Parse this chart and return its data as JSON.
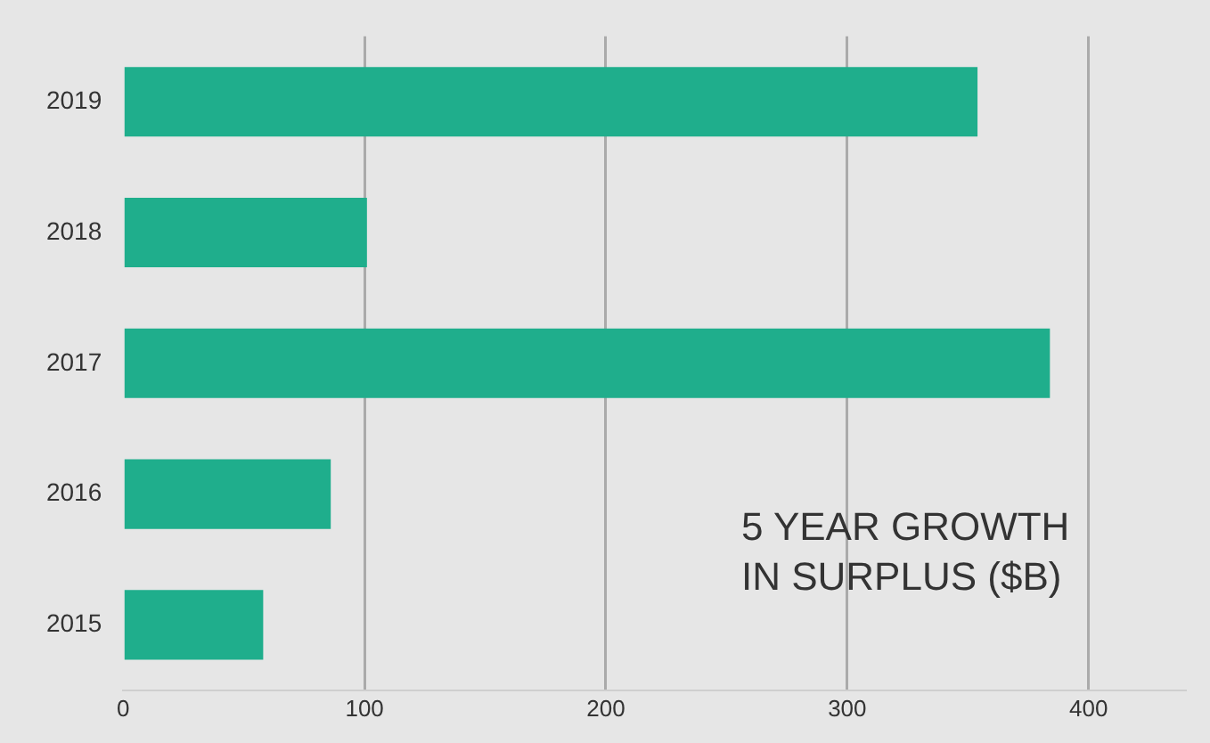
{
  "chart_data": {
    "type": "bar",
    "orientation": "horizontal",
    "title": "5 YEAR GROWTH IN SURPLUS ($B)",
    "categories": [
      "2019",
      "2018",
      "2017",
      "2016",
      "2015"
    ],
    "values": [
      354,
      101,
      384,
      86,
      58
    ],
    "color": "#1fae8c",
    "xlim": [
      0,
      440
    ],
    "xticks": [
      0,
      100,
      200,
      300,
      400
    ],
    "grid": "x"
  }
}
